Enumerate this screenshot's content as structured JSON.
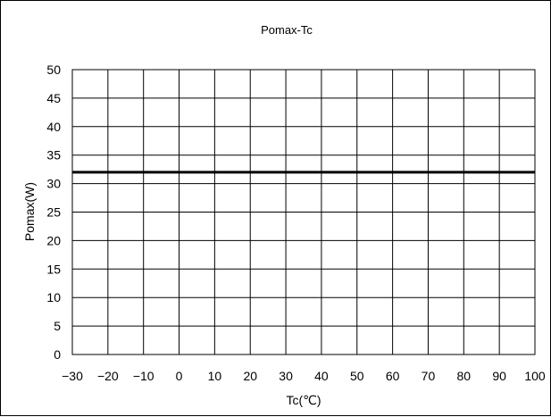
{
  "chart_data": {
    "type": "line",
    "title": "Pomax-Tc",
    "xlabel": "Tc(℃)",
    "ylabel": "Pomax(W)",
    "xlim": [
      -30,
      100
    ],
    "ylim": [
      0,
      50
    ],
    "x_ticks": [
      -30,
      -20,
      -10,
      0,
      10,
      20,
      30,
      40,
      50,
      60,
      70,
      80,
      90,
      100
    ],
    "y_ticks": [
      0,
      5,
      10,
      15,
      20,
      25,
      30,
      35,
      40,
      45,
      50
    ],
    "x_tick_labels": [
      "−30",
      "−20",
      "−10",
      "0",
      "10",
      "20",
      "30",
      "40",
      "50",
      "60",
      "70",
      "80",
      "90",
      "100"
    ],
    "y_tick_labels": [
      "0",
      "5",
      "10",
      "15",
      "20",
      "25",
      "30",
      "35",
      "40",
      "45",
      "50"
    ],
    "grid": true,
    "legend": "none",
    "series": [
      {
        "x": [
          -30,
          100
        ],
        "y": [
          32,
          32
        ],
        "color": "#000000"
      }
    ]
  }
}
